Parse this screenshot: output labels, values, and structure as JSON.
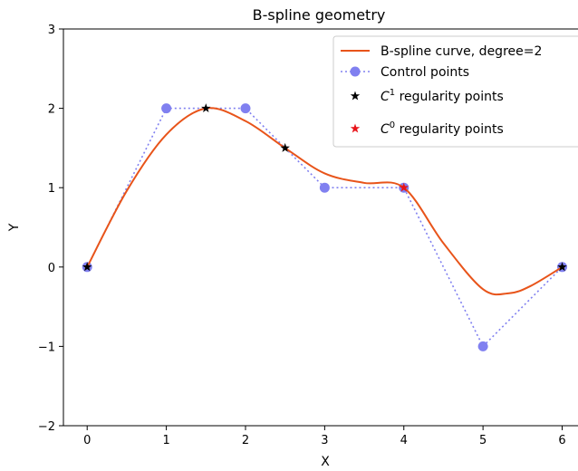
{
  "chart_data": {
    "type": "line",
    "title": "B-spline geometry",
    "xlabel": "X",
    "ylabel": "Y",
    "xlim": [
      -0.3,
      6.2
    ],
    "ylim": [
      -2,
      3
    ],
    "xticks": [
      0,
      1,
      2,
      3,
      4,
      5,
      6
    ],
    "yticks": [
      -2,
      -1,
      0,
      1,
      2,
      3
    ],
    "xtick_labels": [
      "0",
      "1",
      "2",
      "3",
      "4",
      "5",
      "6"
    ],
    "ytick_labels": [
      "−2",
      "−1",
      "0",
      "1",
      "2",
      "3"
    ],
    "grid": false,
    "legend_position": "top-right",
    "series": [
      {
        "name": "B-spline curve, degree=2",
        "kind": "line",
        "color": "#e8541a",
        "x": [
          0,
          0.5,
          1.0,
          1.5,
          2.0,
          2.5,
          3.0,
          3.5,
          4.0,
          4.5,
          5.0,
          5.33,
          5.6,
          6.0
        ],
        "y": [
          0,
          0.96,
          1.67,
          2.0,
          1.84,
          1.5,
          1.18,
          1.06,
          1.0,
          0.3,
          -0.28,
          -0.33,
          -0.24,
          0
        ]
      },
      {
        "name": "Control points",
        "kind": "dotted-line-markers",
        "color": "#8080f0",
        "x": [
          0,
          1,
          2,
          3,
          4,
          5,
          6
        ],
        "y": [
          0,
          2,
          2,
          1,
          1,
          -1,
          0
        ]
      },
      {
        "name": "C1 regularity points",
        "kind": "star-markers",
        "color": "#000000",
        "x": [
          0,
          1.5,
          2.5,
          6
        ],
        "y": [
          0,
          2,
          1.5,
          0
        ]
      },
      {
        "name": "C0 regularity points",
        "kind": "star-markers",
        "color": "#e8141a",
        "x": [
          4
        ],
        "y": [
          1
        ]
      }
    ],
    "legend": [
      {
        "label_main": "B-spline curve, degree=2",
        "sym": "",
        "sup": ""
      },
      {
        "label_main": "Control points",
        "sym": "",
        "sup": ""
      },
      {
        "label_main": " regularity points",
        "sym": "C",
        "sup": "1"
      },
      {
        "label_main": " regularity points",
        "sym": "C",
        "sup": "0"
      }
    ]
  }
}
